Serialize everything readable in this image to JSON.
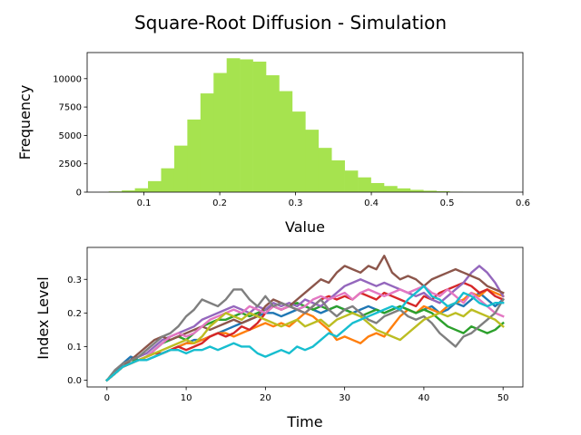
{
  "figure": {
    "title": "Square-Root Diffusion - Simulation"
  },
  "chart_data": [
    {
      "type": "bar",
      "subtype": "histogram",
      "xlabel": "Value",
      "ylabel": "Frequency",
      "xlim": [
        0.025,
        0.6
      ],
      "ylim": [
        0,
        12300
      ],
      "xticks": [
        0.1,
        0.2,
        0.3,
        0.4,
        0.5,
        0.6
      ],
      "xtick_labels": [
        "0.1",
        "0.2",
        "0.3",
        "0.4",
        "0.5",
        "0.6"
      ],
      "yticks": [
        0,
        2500,
        5000,
        7500,
        10000
      ],
      "ytick_labels": [
        "0",
        "2500",
        "5000",
        "7500",
        "10000"
      ],
      "color": "#a6e34f",
      "bin_edges": [
        0.0534,
        0.0707,
        0.088,
        0.1053,
        0.1226,
        0.1399,
        0.1572,
        0.1745,
        0.1918,
        0.2091,
        0.2264,
        0.2437,
        0.261,
        0.2783,
        0.2956,
        0.3129,
        0.3302,
        0.3475,
        0.3648,
        0.3821,
        0.3994,
        0.4167,
        0.434,
        0.4513,
        0.4686,
        0.4859,
        0.5032,
        0.5205,
        0.5378,
        0.5551,
        0.5724
      ],
      "values": [
        60,
        150,
        340,
        970,
        2100,
        4100,
        6400,
        8700,
        10500,
        11800,
        11700,
        11500,
        10300,
        8900,
        7100,
        5500,
        3900,
        2800,
        1900,
        1300,
        800,
        540,
        330,
        200,
        130,
        80,
        40,
        20,
        10,
        5
      ],
      "grid": false,
      "legend": "none"
    },
    {
      "type": "line",
      "xlabel": "Time",
      "ylabel": "Index Level",
      "xlim": [
        -2.5,
        52.5
      ],
      "ylim": [
        -0.02,
        0.395
      ],
      "xticks": [
        0,
        10,
        20,
        30,
        40,
        50
      ],
      "xtick_labels": [
        "0",
        "10",
        "20",
        "30",
        "40",
        "50"
      ],
      "yticks": [
        0.0,
        0.1,
        0.2,
        0.3
      ],
      "ytick_labels": [
        "0.0",
        "0.1",
        "0.2",
        "0.3"
      ],
      "grid": false,
      "legend": "none",
      "x": [
        0,
        1,
        2,
        3,
        4,
        5,
        6,
        7,
        8,
        9,
        10,
        11,
        12,
        13,
        14,
        15,
        16,
        17,
        18,
        19,
        20,
        21,
        22,
        23,
        24,
        25,
        26,
        27,
        28,
        29,
        30,
        31,
        32,
        33,
        34,
        35,
        36,
        37,
        38,
        39,
        40,
        41,
        42,
        43,
        44,
        45,
        46,
        47,
        48,
        49,
        50
      ],
      "series": [
        {
          "color": "#1f77b4",
          "values": [
            0,
            0.02,
            0.05,
            0.07,
            0.06,
            0.06,
            0.07,
            0.08,
            0.09,
            0.1,
            0.11,
            0.12,
            0.12,
            0.13,
            0.14,
            0.15,
            0.16,
            0.17,
            0.18,
            0.19,
            0.2,
            0.2,
            0.19,
            0.2,
            0.21,
            0.22,
            0.21,
            0.2,
            0.21,
            0.22,
            0.21,
            0.2,
            0.21,
            0.22,
            0.21,
            0.2,
            0.21,
            0.22,
            0.21,
            0.2,
            0.21,
            0.22,
            0.2,
            0.21,
            0.23,
            0.22,
            0.24,
            0.26,
            0.24,
            0.22,
            0.24
          ]
        },
        {
          "color": "#ff7f0e",
          "values": [
            0,
            0.02,
            0.04,
            0.05,
            0.06,
            0.07,
            0.08,
            0.08,
            0.09,
            0.1,
            0.11,
            0.11,
            0.12,
            0.13,
            0.14,
            0.14,
            0.13,
            0.14,
            0.15,
            0.16,
            0.17,
            0.16,
            0.17,
            0.16,
            0.18,
            0.2,
            0.19,
            0.17,
            0.15,
            0.12,
            0.13,
            0.12,
            0.11,
            0.13,
            0.14,
            0.13,
            0.16,
            0.19,
            0.21,
            0.2,
            0.22,
            0.21,
            0.2,
            0.22,
            0.23,
            0.24,
            0.26,
            0.25,
            0.27,
            0.26,
            0.25
          ]
        },
        {
          "color": "#2ca02c",
          "values": [
            0,
            0.02,
            0.04,
            0.06,
            0.06,
            0.07,
            0.09,
            0.11,
            0.12,
            0.13,
            0.12,
            0.14,
            0.16,
            0.17,
            0.18,
            0.18,
            0.19,
            0.2,
            0.19,
            0.2,
            0.21,
            0.22,
            0.21,
            0.22,
            0.23,
            0.22,
            0.21,
            0.22,
            0.21,
            0.22,
            0.21,
            0.2,
            0.19,
            0.2,
            0.21,
            0.2,
            0.21,
            0.22,
            0.21,
            0.2,
            0.21,
            0.2,
            0.18,
            0.16,
            0.15,
            0.14,
            0.16,
            0.15,
            0.14,
            0.15,
            0.17
          ]
        },
        {
          "color": "#d62728",
          "values": [
            0,
            0.02,
            0.04,
            0.05,
            0.06,
            0.07,
            0.08,
            0.08,
            0.09,
            0.1,
            0.09,
            0.1,
            0.11,
            0.13,
            0.14,
            0.13,
            0.14,
            0.16,
            0.15,
            0.17,
            0.2,
            0.22,
            0.21,
            0.22,
            0.21,
            0.2,
            0.22,
            0.24,
            0.25,
            0.24,
            0.25,
            0.24,
            0.26,
            0.25,
            0.24,
            0.26,
            0.25,
            0.24,
            0.23,
            0.22,
            0.25,
            0.24,
            0.26,
            0.27,
            0.28,
            0.29,
            0.28,
            0.26,
            0.27,
            0.25,
            0.24
          ]
        },
        {
          "color": "#9467bd",
          "values": [
            0,
            0.02,
            0.04,
            0.06,
            0.07,
            0.08,
            0.1,
            0.12,
            0.13,
            0.14,
            0.15,
            0.16,
            0.18,
            0.19,
            0.2,
            0.21,
            0.22,
            0.21,
            0.2,
            0.22,
            0.21,
            0.23,
            0.22,
            0.23,
            0.22,
            0.24,
            0.23,
            0.22,
            0.24,
            0.26,
            0.28,
            0.29,
            0.3,
            0.29,
            0.28,
            0.29,
            0.28,
            0.27,
            0.26,
            0.25,
            0.26,
            0.24,
            0.23,
            0.25,
            0.27,
            0.29,
            0.32,
            0.34,
            0.32,
            0.29,
            0.25
          ]
        },
        {
          "color": "#8c564b",
          "values": [
            0,
            0.02,
            0.04,
            0.06,
            0.08,
            0.1,
            0.12,
            0.13,
            0.12,
            0.13,
            0.14,
            0.15,
            0.16,
            0.15,
            0.16,
            0.17,
            0.18,
            0.17,
            0.18,
            0.19,
            0.22,
            0.24,
            0.23,
            0.22,
            0.24,
            0.26,
            0.28,
            0.3,
            0.29,
            0.32,
            0.34,
            0.33,
            0.32,
            0.34,
            0.33,
            0.37,
            0.32,
            0.3,
            0.31,
            0.3,
            0.28,
            0.3,
            0.31,
            0.32,
            0.33,
            0.32,
            0.31,
            0.3,
            0.28,
            0.27,
            0.26
          ]
        },
        {
          "color": "#e377c2",
          "values": [
            0,
            0.02,
            0.04,
            0.05,
            0.06,
            0.07,
            0.09,
            0.11,
            0.13,
            0.14,
            0.13,
            0.14,
            0.16,
            0.18,
            0.19,
            0.2,
            0.21,
            0.2,
            0.22,
            0.21,
            0.2,
            0.22,
            0.21,
            0.22,
            0.21,
            0.22,
            0.24,
            0.25,
            0.24,
            0.25,
            0.26,
            0.24,
            0.26,
            0.27,
            0.26,
            0.25,
            0.26,
            0.27,
            0.26,
            0.27,
            0.28,
            0.26,
            0.25,
            0.27,
            0.25,
            0.23,
            0.26,
            0.24,
            0.22,
            0.2,
            0.19
          ]
        },
        {
          "color": "#7f7f7f",
          "values": [
            0,
            0.03,
            0.05,
            0.06,
            0.07,
            0.09,
            0.11,
            0.13,
            0.14,
            0.16,
            0.19,
            0.21,
            0.24,
            0.23,
            0.22,
            0.24,
            0.27,
            0.27,
            0.24,
            0.22,
            0.25,
            0.22,
            0.23,
            0.22,
            0.21,
            0.2,
            0.22,
            0.24,
            0.21,
            0.19,
            0.21,
            0.22,
            0.2,
            0.18,
            0.17,
            0.19,
            0.2,
            0.21,
            0.19,
            0.18,
            0.19,
            0.17,
            0.14,
            0.12,
            0.1,
            0.13,
            0.14,
            0.16,
            0.18,
            0.2,
            0.24
          ]
        },
        {
          "color": "#bcbd22",
          "values": [
            0,
            0.02,
            0.04,
            0.05,
            0.06,
            0.07,
            0.08,
            0.09,
            0.1,
            0.11,
            0.12,
            0.11,
            0.13,
            0.16,
            0.18,
            0.2,
            0.19,
            0.18,
            0.2,
            0.19,
            0.18,
            0.17,
            0.16,
            0.17,
            0.18,
            0.16,
            0.17,
            0.18,
            0.16,
            0.18,
            0.19,
            0.2,
            0.19,
            0.17,
            0.15,
            0.14,
            0.13,
            0.12,
            0.14,
            0.16,
            0.18,
            0.19,
            0.2,
            0.19,
            0.2,
            0.19,
            0.21,
            0.2,
            0.19,
            0.18,
            0.16
          ]
        },
        {
          "color": "#17becf",
          "values": [
            0,
            0.02,
            0.04,
            0.05,
            0.06,
            0.06,
            0.07,
            0.08,
            0.09,
            0.09,
            0.08,
            0.09,
            0.09,
            0.1,
            0.09,
            0.1,
            0.11,
            0.1,
            0.1,
            0.08,
            0.07,
            0.08,
            0.09,
            0.08,
            0.1,
            0.09,
            0.1,
            0.12,
            0.14,
            0.13,
            0.15,
            0.17,
            0.18,
            0.19,
            0.2,
            0.21,
            0.22,
            0.21,
            0.24,
            0.26,
            0.28,
            0.25,
            0.24,
            0.22,
            0.23,
            0.26,
            0.25,
            0.23,
            0.22,
            0.23,
            0.23
          ]
        }
      ]
    }
  ]
}
